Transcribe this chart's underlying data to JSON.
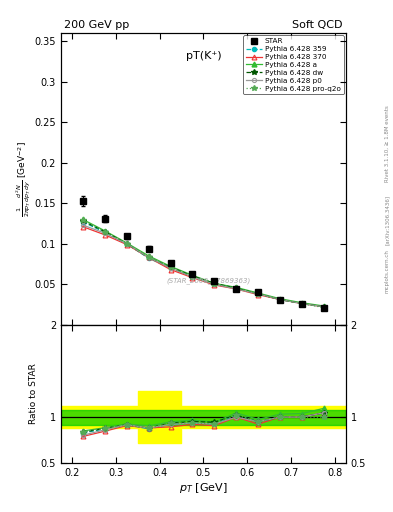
{
  "title_top": "200 GeV pp",
  "title_right": "Soft QCD",
  "plot_title": "pT(K⁺)",
  "watermark": "(STAR_2008_S7869363)",
  "rivet_label": "Rivet 3.1.10, ≥ 1.8M events",
  "arxiv_label": "[arXiv:1306.3436]",
  "mcplots_label": "mcplots.cern.ch",
  "ylabel_main": "$\\frac{1}{2\\pi p_T} \\frac{d^2N}{dp_T\\,dy}$ [GeV$^{-2}$]",
  "ylabel_ratio": "Ratio to STAR",
  "xlabel": "$p_T$ [GeV]",
  "ylim_main": [
    0,
    0.36
  ],
  "ylim_ratio": [
    0.5,
    2.0
  ],
  "xlim": [
    0.175,
    0.825
  ],
  "star_pt": [
    0.225,
    0.275,
    0.325,
    0.375,
    0.425,
    0.475,
    0.525,
    0.575,
    0.625,
    0.675,
    0.725,
    0.775
  ],
  "star_val": [
    0.153,
    0.131,
    0.109,
    0.094,
    0.076,
    0.063,
    0.054,
    0.044,
    0.04,
    0.031,
    0.026,
    0.021
  ],
  "star_err": [
    0.006,
    0.004,
    0.003,
    0.003,
    0.002,
    0.002,
    0.002,
    0.001,
    0.001,
    0.001,
    0.001,
    0.001
  ],
  "py359_val": [
    0.127,
    0.114,
    0.1,
    0.082,
    0.07,
    0.059,
    0.05,
    0.045,
    0.038,
    0.031,
    0.026,
    0.022
  ],
  "py370_val": [
    0.121,
    0.111,
    0.099,
    0.083,
    0.068,
    0.058,
    0.049,
    0.044,
    0.037,
    0.031,
    0.026,
    0.022
  ],
  "pya_val": [
    0.13,
    0.116,
    0.101,
    0.085,
    0.072,
    0.061,
    0.051,
    0.046,
    0.039,
    0.032,
    0.027,
    0.023
  ],
  "pydw_val": [
    0.128,
    0.115,
    0.1,
    0.083,
    0.071,
    0.06,
    0.051,
    0.045,
    0.038,
    0.031,
    0.026,
    0.022
  ],
  "pyp0_val": [
    0.123,
    0.113,
    0.1,
    0.083,
    0.07,
    0.059,
    0.05,
    0.044,
    0.038,
    0.031,
    0.026,
    0.022
  ],
  "pyproq2o_val": [
    0.129,
    0.115,
    0.1,
    0.083,
    0.071,
    0.059,
    0.05,
    0.045,
    0.038,
    0.031,
    0.026,
    0.021
  ],
  "color_359": "#00BBBB",
  "color_370": "#EE3333",
  "color_a": "#33BB33",
  "color_dw": "#005500",
  "color_p0": "#999999",
  "color_proq2o": "#55AA55",
  "yticks_main": [
    0.0,
    0.05,
    0.1,
    0.15,
    0.2,
    0.25,
    0.3,
    0.35
  ],
  "ytick_labels_main": [
    "",
    "0.05",
    "0.1",
    "0.15",
    "0.2",
    "0.25",
    "0.3",
    "0.35"
  ],
  "yticks_ratio": [
    0.5,
    1.0,
    2.0
  ],
  "ytick_labels_ratio": [
    "0.5",
    "1",
    "2"
  ]
}
